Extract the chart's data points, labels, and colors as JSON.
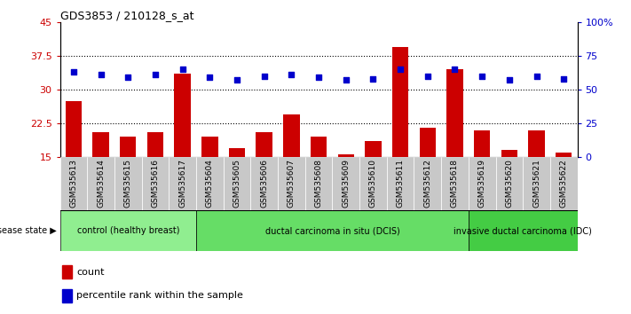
{
  "title": "GDS3853 / 210128_s_at",
  "samples": [
    "GSM535613",
    "GSM535614",
    "GSM535615",
    "GSM535616",
    "GSM535617",
    "GSM535604",
    "GSM535605",
    "GSM535606",
    "GSM535607",
    "GSM535608",
    "GSM535609",
    "GSM535610",
    "GSM535611",
    "GSM535612",
    "GSM535618",
    "GSM535619",
    "GSM535620",
    "GSM535621",
    "GSM535622"
  ],
  "counts": [
    27.5,
    20.5,
    19.5,
    20.5,
    33.5,
    19.5,
    17.0,
    20.5,
    24.5,
    19.5,
    15.5,
    18.5,
    39.5,
    21.5,
    34.5,
    21.0,
    16.5,
    21.0,
    16.0
  ],
  "percentiles": [
    63,
    61,
    59,
    61,
    65,
    59,
    57,
    60,
    61,
    59,
    57,
    58,
    65,
    60,
    65,
    60,
    57,
    60,
    58
  ],
  "ylim_left": [
    15,
    45
  ],
  "ylim_right": [
    0,
    100
  ],
  "yticks_left": [
    15,
    22.5,
    30,
    37.5,
    45
  ],
  "yticks_right": [
    0,
    25,
    50,
    75,
    100
  ],
  "ytick_labels_left": [
    "15",
    "22.5",
    "30",
    "37.5",
    "45"
  ],
  "ytick_labels_right": [
    "0",
    "25",
    "50",
    "75",
    "100%"
  ],
  "bar_color": "#CC0000",
  "dot_color": "#0000CC",
  "grid_yticks": [
    22.5,
    30,
    37.5
  ],
  "legend_items": [
    "count",
    "percentile rank within the sample"
  ],
  "legend_colors": [
    "#CC0000",
    "#0000CC"
  ],
  "groups": [
    {
      "label": "control (healthy breast)",
      "start": 0,
      "end": 5,
      "color": "#90EE90"
    },
    {
      "label": "ductal carcinoma in situ (DCIS)",
      "start": 5,
      "end": 15,
      "color": "#66DD66"
    },
    {
      "label": "invasive ductal carcinoma (IDC)",
      "start": 15,
      "end": 19,
      "color": "#44CC44"
    }
  ],
  "group_dividers": [
    5,
    15
  ],
  "xtick_bg": "#C8C8C8",
  "plot_bg": "#ffffff",
  "spine_color": "#000000"
}
